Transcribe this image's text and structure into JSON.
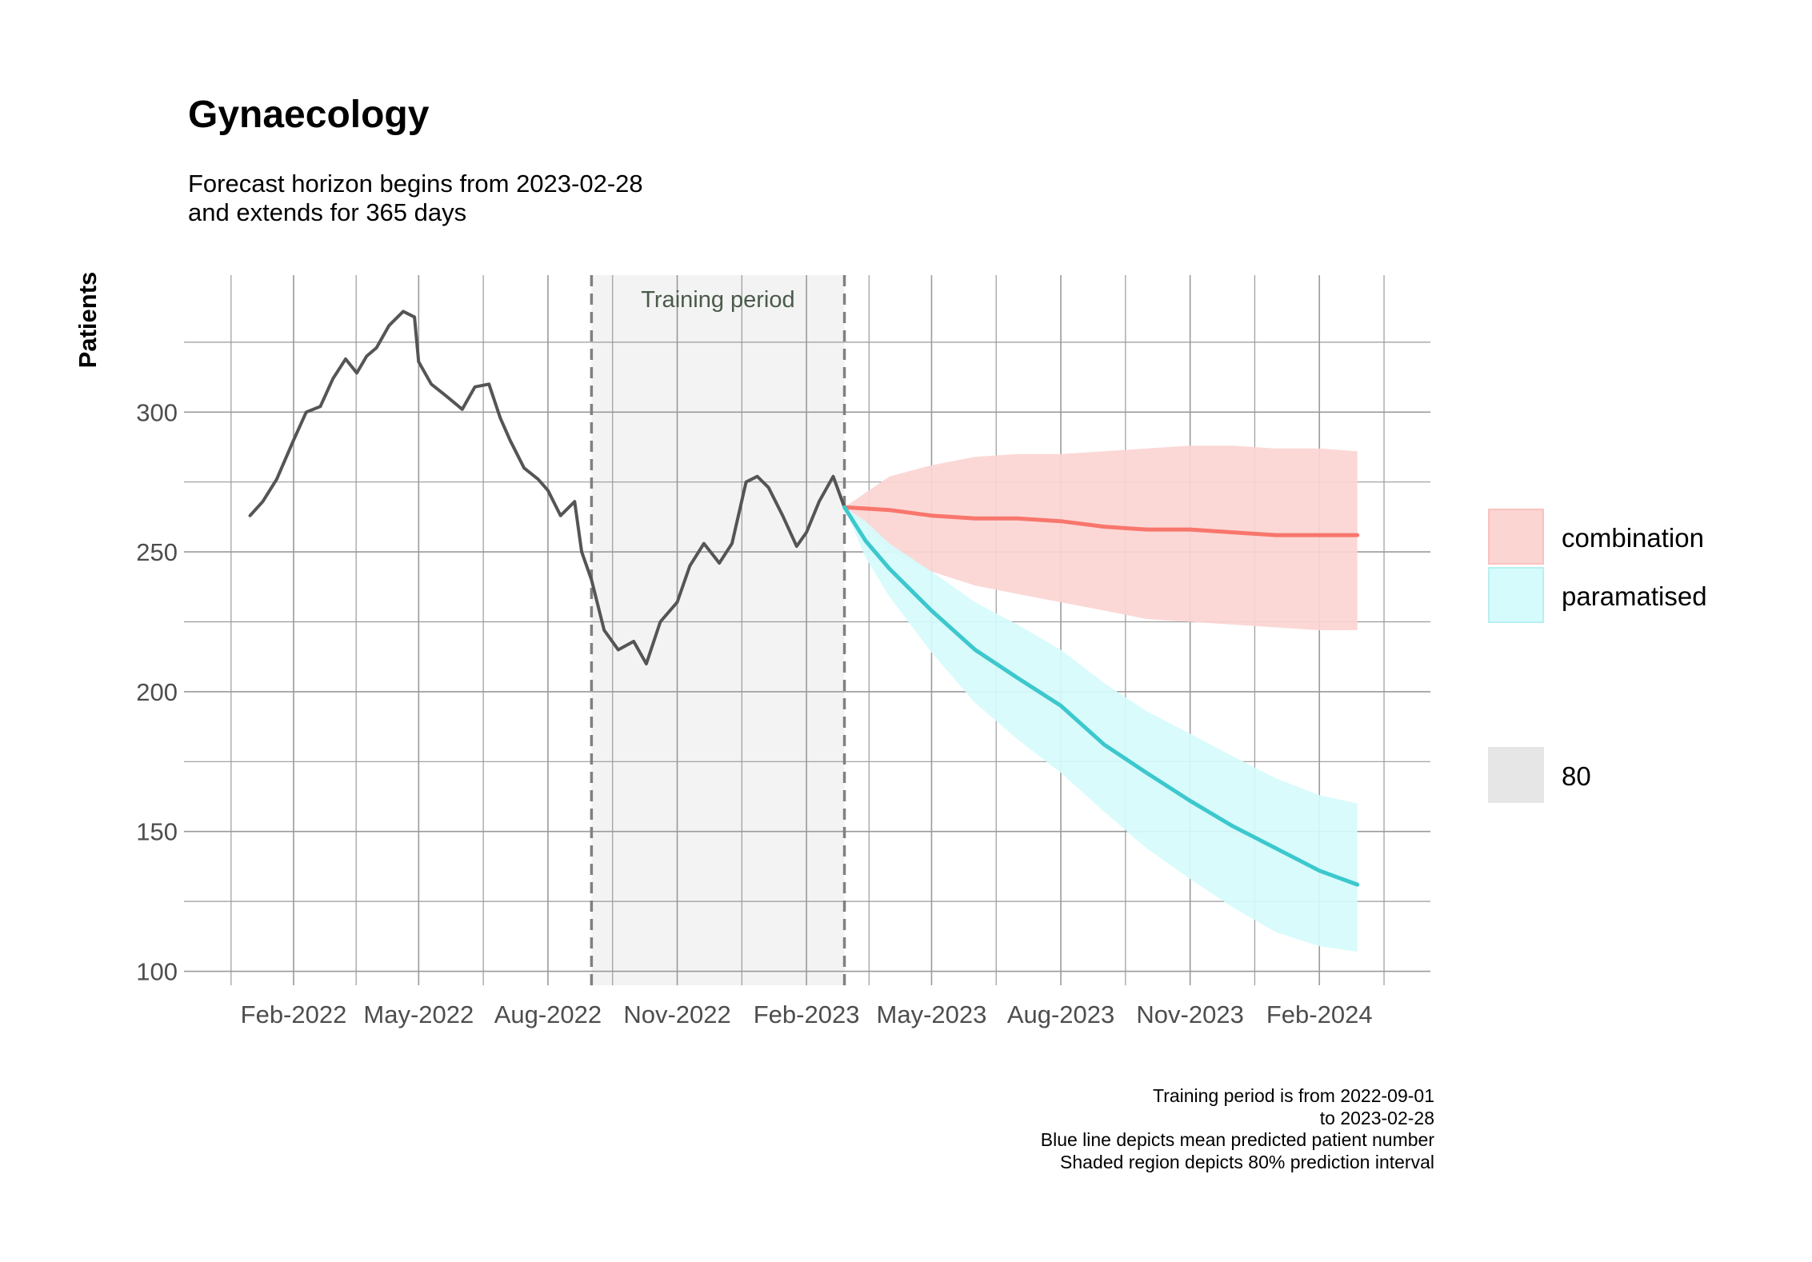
{
  "title": "Gynaecology",
  "subtitle": [
    "Forecast horizon begins from 2023-02-28",
    "and extends for 365 days"
  ],
  "caption": [
    "Training period is from 2022-09-01",
    "to 2023-02-28",
    "Blue line depicts mean predicted patient number",
    "Shaded region depicts 80% prediction interval"
  ],
  "legend": {
    "items": [
      {
        "label": "combination",
        "color": "#f8766d"
      },
      {
        "label": "paramatised",
        "color": "#00bfc4"
      }
    ],
    "interval_label": "80"
  },
  "colors": {
    "history": "#555555",
    "combination": "#f8766d",
    "combination_band": "#fbd5d2",
    "paramatised": "#3cc8cd",
    "paramatised_band": "#d6fbfc",
    "training_shade": "#f3f3f3",
    "grid": "#9a9a9a"
  },
  "chart_data": {
    "type": "line",
    "ylabel": "Patients",
    "xlabel": "",
    "x_axis": "date",
    "xlim": [
      "2021-11-15",
      "2024-04-20"
    ],
    "ylim": [
      95,
      349
    ],
    "y_ticks": [
      100,
      150,
      200,
      250,
      300
    ],
    "x_ticks": [
      {
        "date": "2022-02-01",
        "label": "Feb-2022"
      },
      {
        "date": "2022-05-01",
        "label": "May-2022"
      },
      {
        "date": "2022-08-01",
        "label": "Aug-2022"
      },
      {
        "date": "2022-11-01",
        "label": "Nov-2022"
      },
      {
        "date": "2023-02-01",
        "label": "Feb-2023"
      },
      {
        "date": "2023-05-01",
        "label": "May-2023"
      },
      {
        "date": "2023-08-01",
        "label": "Aug-2023"
      },
      {
        "date": "2023-11-01",
        "label": "Nov-2023"
      },
      {
        "date": "2024-02-01",
        "label": "Feb-2024"
      }
    ],
    "training_period": {
      "start": "2022-09-01",
      "end": "2023-02-28",
      "label": "Training period"
    },
    "grid": true,
    "legend_position": "right",
    "series": [
      {
        "key": "history",
        "x": [
          "2022-01-01",
          "2022-01-10",
          "2022-01-20",
          "2022-02-01",
          "2022-02-10",
          "2022-02-20",
          "2022-03-01",
          "2022-03-10",
          "2022-03-18",
          "2022-03-25",
          "2022-04-01",
          "2022-04-10",
          "2022-04-20",
          "2022-04-28",
          "2022-05-01",
          "2022-05-10",
          "2022-05-20",
          "2022-06-01",
          "2022-06-10",
          "2022-06-20",
          "2022-06-28",
          "2022-07-05",
          "2022-07-15",
          "2022-07-25",
          "2022-08-01",
          "2022-08-10",
          "2022-08-20",
          "2022-08-25",
          "2022-09-01",
          "2022-09-10",
          "2022-09-20",
          "2022-10-01",
          "2022-10-10",
          "2022-10-20",
          "2022-11-01",
          "2022-11-10",
          "2022-11-20",
          "2022-12-01",
          "2022-12-10",
          "2022-12-20",
          "2022-12-28",
          "2023-01-05",
          "2023-01-15",
          "2023-01-25",
          "2023-02-01",
          "2023-02-10",
          "2023-02-20",
          "2023-02-28"
        ],
        "values": [
          263,
          268,
          276,
          290,
          300,
          302,
          312,
          319,
          314,
          320,
          323,
          331,
          336,
          334,
          318,
          310,
          306,
          301,
          309,
          310,
          298,
          290,
          280,
          276,
          272,
          263,
          268,
          250,
          240,
          222,
          215,
          218,
          210,
          225,
          232,
          245,
          253,
          246,
          253,
          275,
          277,
          273,
          263,
          252,
          257,
          268,
          277,
          266
        ]
      },
      {
        "key": "combination",
        "name": "combination",
        "x": [
          "2023-02-28",
          "2023-04-01",
          "2023-05-01",
          "2023-06-01",
          "2023-07-01",
          "2023-08-01",
          "2023-09-01",
          "2023-10-01",
          "2023-11-01",
          "2023-12-01",
          "2024-01-01",
          "2024-02-01",
          "2024-02-28"
        ],
        "values": [
          266,
          265,
          263,
          262,
          262,
          261,
          259,
          258,
          258,
          257,
          256,
          256,
          256
        ],
        "lower": [
          266,
          250,
          243,
          238,
          235,
          232,
          229,
          226,
          225,
          224,
          223,
          222,
          222
        ],
        "upper": [
          266,
          277,
          281,
          284,
          285,
          285,
          286,
          287,
          288,
          288,
          287,
          287,
          286
        ]
      },
      {
        "key": "paramatised",
        "name": "paramatised",
        "x": [
          "2023-02-28",
          "2023-03-15",
          "2023-04-01",
          "2023-05-01",
          "2023-06-01",
          "2023-07-01",
          "2023-08-01",
          "2023-09-01",
          "2023-10-01",
          "2023-11-01",
          "2023-12-01",
          "2024-01-01",
          "2024-02-01",
          "2024-02-28"
        ],
        "values": [
          266,
          254,
          244,
          229,
          215,
          205,
          195,
          181,
          171,
          161,
          152,
          144,
          136,
          131
        ],
        "lower": [
          266,
          248,
          234,
          214,
          196,
          183,
          171,
          157,
          144,
          133,
          123,
          114,
          109,
          107
        ],
        "upper": [
          266,
          261,
          253,
          243,
          232,
          224,
          215,
          203,
          193,
          185,
          177,
          169,
          163,
          160
        ]
      }
    ]
  }
}
